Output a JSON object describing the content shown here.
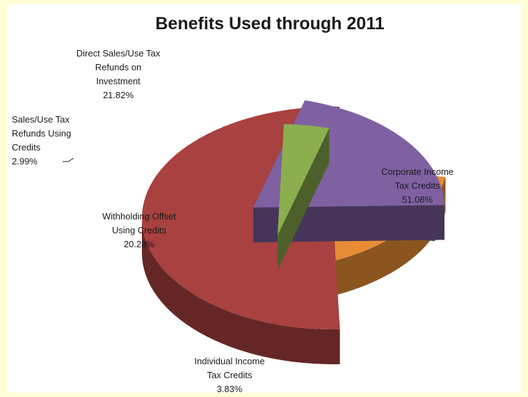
{
  "chart_data": {
    "type": "pie",
    "title": "Benefits Used through 2011",
    "slices": [
      {
        "name": "Corporate Income Tax Credits",
        "value": 51.08,
        "label_lines": [
          "Corporate Income",
          "Tax Credits",
          "51.08%"
        ],
        "color": "#a8413f"
      },
      {
        "name": "Individual Income Tax Credits",
        "value": 3.83,
        "label_lines": [
          "Individual Income",
          "Tax Credits",
          "3.83%"
        ],
        "color": "#8cae4f"
      },
      {
        "name": "Withholding Offset Using Credits",
        "value": 20.28,
        "label_lines": [
          "Withholding Offset",
          "Using Credits",
          "20.28%"
        ],
        "color": "#7f61a2"
      },
      {
        "name": "Sales/Use Tax Refunds Using Credits",
        "value": 2.99,
        "label_lines": [
          "Sales/Use Tax",
          "Refunds Using",
          "Credits",
          "2.99%"
        ],
        "color": "#3aa2c0"
      },
      {
        "name": "Direct Sales/Use Tax Refunds on Investment",
        "value": 21.82,
        "label_lines": [
          "Direct Sales/Use Tax",
          "Refunds on",
          "Investment",
          "21.82%"
        ],
        "color": "#e88d35"
      }
    ],
    "legend": "none",
    "exploded": true,
    "style": "3d"
  }
}
